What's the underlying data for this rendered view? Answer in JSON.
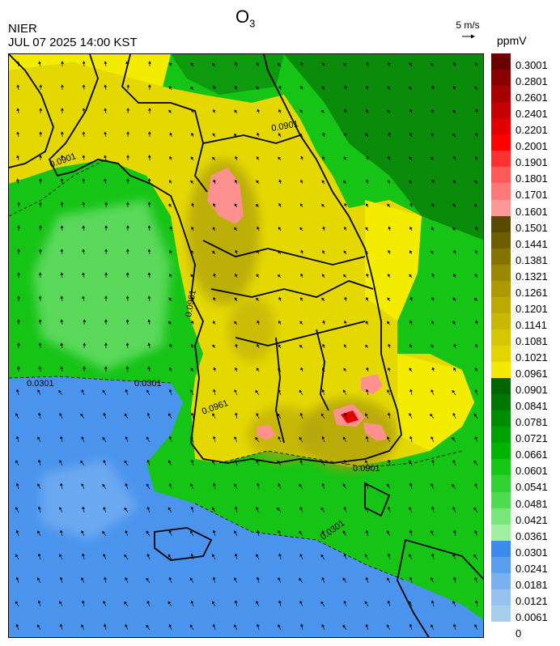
{
  "header": {
    "agency": "NIER",
    "timestamp": "JUL 07 2025 14:00 KST",
    "title_main": "O",
    "title_sub": "3",
    "wind_reference": "5 m/s",
    "units": "ppmV"
  },
  "legend": {
    "levels": [
      {
        "label": "0.3001",
        "color": "#6b0000"
      },
      {
        "label": "0.2801",
        "color": "#8b0000"
      },
      {
        "label": "0.2601",
        "color": "#a80000"
      },
      {
        "label": "0.2401",
        "color": "#c40000"
      },
      {
        "label": "0.2201",
        "color": "#e00000"
      },
      {
        "label": "0.2001",
        "color": "#ff0000"
      },
      {
        "label": "0.1901",
        "color": "#ff3030"
      },
      {
        "label": "0.1801",
        "color": "#ff5a5a"
      },
      {
        "label": "0.1701",
        "color": "#ff7878"
      },
      {
        "label": "0.1601",
        "color": "#ff9898"
      },
      {
        "label": "0.1501",
        "color": "#5a4a00"
      },
      {
        "label": "0.1441",
        "color": "#6f5e00"
      },
      {
        "label": "0.1381",
        "color": "#857300"
      },
      {
        "label": "0.1321",
        "color": "#9a8800"
      },
      {
        "label": "0.1261",
        "color": "#ac9a00"
      },
      {
        "label": "0.1201",
        "color": "#bda900"
      },
      {
        "label": "0.1141",
        "color": "#c9b800"
      },
      {
        "label": "0.1081",
        "color": "#d6c600"
      },
      {
        "label": "0.1021",
        "color": "#e3d400"
      },
      {
        "label": "0.0961",
        "color": "#f2e800"
      },
      {
        "label": "0.0901",
        "color": "#006400"
      },
      {
        "label": "0.0841",
        "color": "#007800"
      },
      {
        "label": "0.0781",
        "color": "#008c00"
      },
      {
        "label": "0.0721",
        "color": "#00a000"
      },
      {
        "label": "0.0661",
        "color": "#00b400"
      },
      {
        "label": "0.0601",
        "color": "#14c814"
      },
      {
        "label": "0.0541",
        "color": "#32d232"
      },
      {
        "label": "0.0481",
        "color": "#50dc50"
      },
      {
        "label": "0.0421",
        "color": "#78e678"
      },
      {
        "label": "0.0361",
        "color": "#a0f0a0"
      },
      {
        "label": "0.0301",
        "color": "#3c8cf0"
      },
      {
        "label": "0.0241",
        "color": "#5a9ef0"
      },
      {
        "label": "0.0181",
        "color": "#78b0f0"
      },
      {
        "label": "0.0121",
        "color": "#96c2f0"
      },
      {
        "label": "0.0061",
        "color": "#a6cfee"
      },
      {
        "label": "0",
        "color": "#ffffff"
      }
    ]
  },
  "map": {
    "contour_labels": {
      "c1": "0.0901",
      "c2": "0.0901",
      "c3": "0.0301",
      "c4": "0.0301",
      "c5": "0.0301",
      "c6": "0.0961",
      "c7": "0.0961",
      "c8": "0.0901"
    },
    "colors": {
      "sea_blue": "#4a94ee",
      "green": "#16c416",
      "dark_green": "#0a8c0a",
      "light_green": "#5ad85a",
      "yellow": "#e4d800",
      "bright_yellow": "#f4ec00",
      "olive": "#a89a10",
      "pink": "#ff9090",
      "red": "#e00000"
    }
  }
}
